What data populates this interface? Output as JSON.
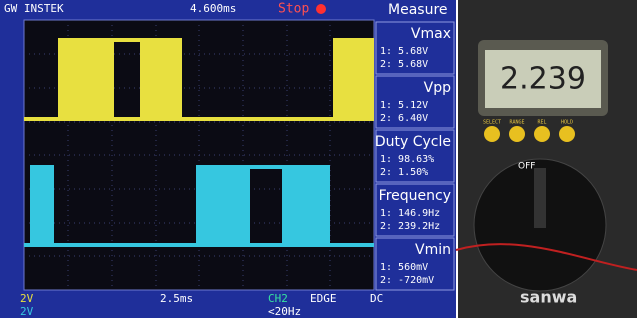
{
  "scope": {
    "brand": "GW INSTEK",
    "timebase": "4.600ms",
    "status": "Stop",
    "panel_title": "Measure",
    "measurements": [
      {
        "name": "Vmax",
        "ch1": "1: 5.68V",
        "ch2": "2: 5.68V"
      },
      {
        "name": "Vpp",
        "ch1": "1: 5.12V",
        "ch2": "2: 6.40V"
      },
      {
        "name": "Duty Cycle",
        "ch1": "1: 98.63%",
        "ch2": "2: 1.50%"
      },
      {
        "name": "Frequency",
        "ch1": "1: 146.9Hz",
        "ch2": "2: 239.2Hz"
      },
      {
        "name": "Vmin",
        "ch1": "1: 560mV",
        "ch2": "2: -720mV"
      }
    ],
    "ch1_scale": "2V",
    "ch2_scale": "2V",
    "time_scale": "2.5ms",
    "trigger_source": "CH2",
    "trigger_type": "EDGE",
    "coupling": "DC",
    "trigger_freq": "<20Hz"
  },
  "multimeter": {
    "reading": "2.239",
    "buttons": [
      "SELECT",
      "RANGE",
      "REL",
      "HOLD"
    ],
    "dial_off": "OFF",
    "brand": "sanwa"
  }
}
